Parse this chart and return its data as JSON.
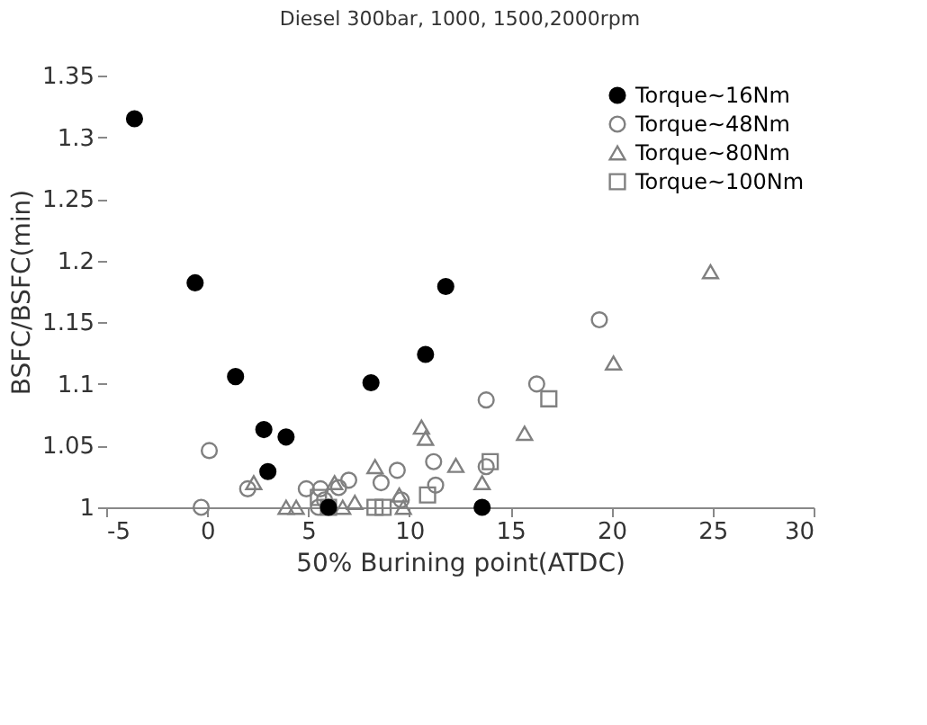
{
  "chart_data": {
    "type": "scatter",
    "title": "Diesel 300bar, 1000, 1500,2000rpm",
    "xlabel": "50% Burining point(ATDC)",
    "ylabel": "BSFC/BSFC(min)",
    "xlim": [
      -5,
      30
    ],
    "xticks": [
      -5,
      0,
      5,
      10,
      15,
      20,
      25,
      30
    ],
    "ylim": [
      1,
      1.35
    ],
    "yticks": [
      1,
      1.05,
      1.1,
      1.15,
      1.2,
      1.25,
      1.3,
      1.35
    ],
    "legend": "top right",
    "grid": false,
    "series": [
      {
        "name": "Torque~16Nm",
        "color": "#000000",
        "marker": "circle",
        "x": [
          -3.6,
          -0.6,
          1.4,
          2.8,
          3.0,
          3.9,
          6.0,
          8.1,
          10.8,
          11.8,
          13.6
        ],
        "values": [
          1.315,
          1.182,
          1.106,
          1.063,
          1.029,
          1.057,
          1.0,
          1.101,
          1.124,
          1.179,
          1.0
        ]
      },
      {
        "name": "Torque~48Nm",
        "color": "#808080",
        "marker": "circle",
        "x": [
          -0.3,
          0.1,
          2.0,
          4.9,
          5.5,
          5.6,
          5.8,
          6.5,
          7.0,
          8.6,
          9.4,
          9.6,
          11.2,
          11.3,
          13.8,
          13.8,
          16.3,
          19.4
        ],
        "values": [
          1.0,
          1.046,
          1.015,
          1.015,
          1.0,
          1.015,
          1.006,
          1.016,
          1.022,
          1.02,
          1.03,
          1.006,
          1.037,
          1.018,
          1.087,
          1.033,
          1.1,
          1.152
        ]
      },
      {
        "name": "Torque~80Nm",
        "color": "#808080",
        "marker": "triangle",
        "x": [
          2.3,
          3.9,
          4.4,
          6.3,
          6.7,
          7.3,
          8.3,
          9.5,
          9.7,
          10.6,
          10.8,
          12.3,
          13.6,
          15.7,
          20.1,
          24.9
        ],
        "values": [
          1.02,
          1.0,
          1.0,
          1.02,
          1.0,
          1.004,
          1.033,
          1.01,
          1.0,
          1.065,
          1.056,
          1.034,
          1.02,
          1.06,
          1.117,
          1.191
        ]
      },
      {
        "name": "Torque~100Nm",
        "color": "#808080",
        "marker": "square",
        "x": [
          5.5,
          6.0,
          8.3,
          8.7,
          10.9,
          14.0,
          16.9
        ],
        "values": [
          1.008,
          1.0,
          1.0,
          1.0,
          1.01,
          1.037,
          1.088
        ]
      }
    ]
  }
}
